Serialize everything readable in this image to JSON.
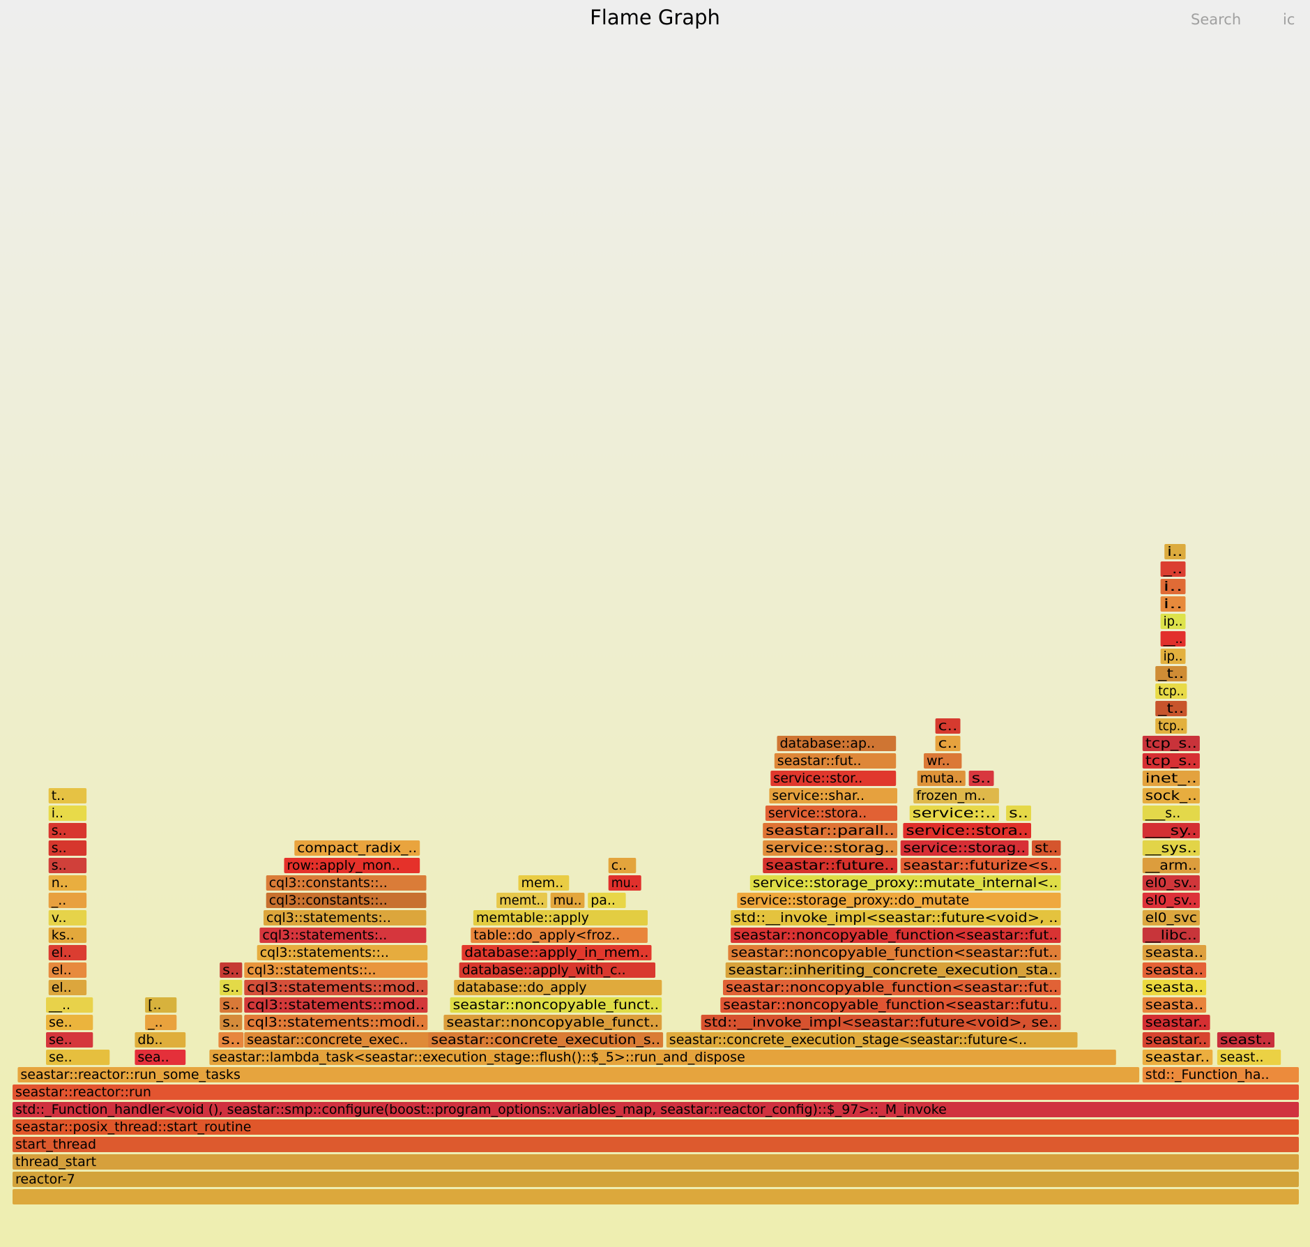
{
  "title": "Flame Graph",
  "controls": {
    "search_label": "Search",
    "ic_label": "ic"
  },
  "colors": {
    "background_top": "#eeeeee",
    "background_bottom": "#eeeeb0",
    "palette": "hot (red-orange-yellow)"
  },
  "chart_data": {
    "type": "flamegraph",
    "title": "Flame Graph",
    "xlabel": "",
    "ylabel": "",
    "frames": [
      {
        "label": "",
        "depth": 0,
        "start": 0.0,
        "width": 1.0,
        "color": "#dca83c"
      },
      {
        "label": "reactor-7",
        "depth": 1,
        "start": 0.0,
        "width": 1.0,
        "color": "#d3a33a"
      },
      {
        "label": "thread_start",
        "depth": 2,
        "start": 0.0,
        "width": 1.0,
        "color": "#d6a03c"
      },
      {
        "label": "start_thread",
        "depth": 3,
        "start": 0.0,
        "width": 1.0,
        "color": "#dd5a2e"
      },
      {
        "label": "seastar::posix_thread::start_routine",
        "depth": 4,
        "start": 0.0,
        "width": 1.0,
        "color": "#e0572a"
      },
      {
        "label": "std::_Function_handler<void (), seastar::smp::configure(boost::program_options::variables_map, seastar::reactor_config)::$_97>::_M_invoke",
        "depth": 5,
        "start": 0.0,
        "width": 1.0,
        "color": "#d0323f"
      },
      {
        "label": "seastar::reactor::run",
        "depth": 6,
        "start": 0.0,
        "width": 1.0,
        "color": "#e35530"
      },
      {
        "label": "seastar::reactor::run_some_tasks",
        "depth": 7,
        "start": 0.004,
        "width": 0.872,
        "color": "#e6a43e"
      },
      {
        "label": "std::_Function_ha..",
        "depth": 7,
        "start": 0.878,
        "width": 0.122,
        "color": "#ec8b3c"
      },
      {
        "label": "se..",
        "depth": 8,
        "start": 0.026,
        "width": 0.05,
        "color": "#e6bf3e"
      },
      {
        "label": "sea..",
        "depth": 8,
        "start": 0.095,
        "width": 0.04,
        "color": "#e4303a"
      },
      {
        "label": "seastar::lambda_task<seastar::execution_stage::flush()::$_5>::run_and_dispose",
        "depth": 8,
        "start": 0.153,
        "width": 0.705,
        "color": "#e5a33c"
      },
      {
        "label": "seastar..",
        "depth": 8,
        "start": 0.878,
        "width": 0.055,
        "color": "#ecae3f"
      },
      {
        "label": "seast..",
        "depth": 8,
        "start": 0.936,
        "width": 0.05,
        "color": "#ebd144"
      },
      {
        "label": "se..",
        "depth": 9,
        "start": 0.026,
        "width": 0.037,
        "color": "#d5373c"
      },
      {
        "label": "db..",
        "depth": 9,
        "start": 0.095,
        "width": 0.04,
        "color": "#dfae3b"
      },
      {
        "label": "s..",
        "depth": 9,
        "start": 0.16,
        "width": 0.02,
        "color": "#e7873e"
      },
      {
        "label": "seastar::concrete_exec..",
        "depth": 9,
        "start": 0.18,
        "width": 0.152,
        "color": "#df8b38"
      },
      {
        "label": "seastar::concrete_execution_s..",
        "depth": 9,
        "start": 0.323,
        "width": 0.183,
        "color": "#da7c35"
      },
      {
        "label": "seastar::concrete_execution_stage<seastar::future<..",
        "depth": 9,
        "start": 0.508,
        "width": 0.32,
        "color": "#dfaa3c"
      },
      {
        "label": "seastar..",
        "depth": 9,
        "start": 0.878,
        "width": 0.053,
        "color": "#d74530"
      },
      {
        "label": "seast..",
        "depth": 9,
        "start": 0.936,
        "width": 0.045,
        "color": "#c9303c"
      },
      {
        "label": "se..",
        "depth": 10,
        "start": 0.026,
        "width": 0.037,
        "color": "#ebb43d"
      },
      {
        "label": "_..",
        "depth": 10,
        "start": 0.103,
        "width": 0.025,
        "color": "#e9a23d"
      },
      {
        "label": "s..",
        "depth": 10,
        "start": 0.161,
        "width": 0.018,
        "color": "#d58b3a"
      },
      {
        "label": "cql3::statements::modi..",
        "depth": 10,
        "start": 0.18,
        "width": 0.143,
        "color": "#e27b38"
      },
      {
        "label": "seastar::noncopyable_funct..",
        "depth": 10,
        "start": 0.335,
        "width": 0.17,
        "color": "#dc9e3c"
      },
      {
        "label": "std::__invoke_impl<seastar::future<void>, se..",
        "depth": 10,
        "start": 0.535,
        "width": 0.28,
        "color": "#d7522f"
      },
      {
        "label": "seastar..",
        "depth": 10,
        "start": 0.878,
        "width": 0.053,
        "color": "#d42f32"
      },
      {
        "label": "__..",
        "depth": 11,
        "start": 0.026,
        "width": 0.037,
        "color": "#e8d24a"
      },
      {
        "label": "[..",
        "depth": 11,
        "start": 0.103,
        "width": 0.025,
        "color": "#d7b23d"
      },
      {
        "label": "s..",
        "depth": 11,
        "start": 0.161,
        "width": 0.018,
        "color": "#d97938"
      },
      {
        "label": "cql3::statements::mod..",
        "depth": 11,
        "start": 0.18,
        "width": 0.143,
        "color": "#d3393a"
      },
      {
        "label": "seastar::noncopyable_funct..",
        "depth": 11,
        "start": 0.34,
        "width": 0.165,
        "color": "#dfdd46"
      },
      {
        "label": "seastar::noncopyable_function<seastar::futu..",
        "depth": 11,
        "start": 0.55,
        "width": 0.265,
        "color": "#e05533"
      },
      {
        "label": "seasta..",
        "depth": 11,
        "start": 0.878,
        "width": 0.05,
        "color": "#e8843c"
      },
      {
        "label": "el..",
        "depth": 12,
        "start": 0.028,
        "width": 0.03,
        "color": "#dca63d"
      },
      {
        "label": "s..",
        "depth": 12,
        "start": 0.161,
        "width": 0.018,
        "color": "#e3da48"
      },
      {
        "label": "cql3::statements::mod..",
        "depth": 12,
        "start": 0.18,
        "width": 0.143,
        "color": "#d5503a"
      },
      {
        "label": "database::do_apply",
        "depth": 12,
        "start": 0.343,
        "width": 0.162,
        "color": "#e0aa3c"
      },
      {
        "label": "seastar::noncopyable_function<seastar::fut..",
        "depth": 12,
        "start": 0.552,
        "width": 0.263,
        "color": "#e16236"
      },
      {
        "label": "seasta..",
        "depth": 12,
        "start": 0.878,
        "width": 0.05,
        "color": "#ecd93e"
      },
      {
        "label": "el..",
        "depth": 13,
        "start": 0.028,
        "width": 0.03,
        "color": "#e78a3e"
      },
      {
        "label": "s..",
        "depth": 13,
        "start": 0.161,
        "width": 0.018,
        "color": "#c63a34"
      },
      {
        "label": "cql3::statements::..",
        "depth": 13,
        "start": 0.18,
        "width": 0.143,
        "color": "#e9953d"
      },
      {
        "label": "database::apply_with_c..",
        "depth": 13,
        "start": 0.347,
        "width": 0.153,
        "color": "#d9392e"
      },
      {
        "label": "seastar::inheriting_concrete_execution_sta..",
        "depth": 13,
        "start": 0.554,
        "width": 0.261,
        "color": "#d8a23b"
      },
      {
        "label": "seasta..",
        "depth": 13,
        "start": 0.878,
        "width": 0.05,
        "color": "#e46236"
      },
      {
        "label": "el..",
        "depth": 14,
        "start": 0.028,
        "width": 0.03,
        "color": "#db3d31"
      },
      {
        "label": "cql3::statements::..",
        "depth": 14,
        "start": 0.19,
        "width": 0.133,
        "color": "#e6ac3e"
      },
      {
        "label": "database::apply_in_mem..",
        "depth": 14,
        "start": 0.349,
        "width": 0.148,
        "color": "#e2392d"
      },
      {
        "label": "seastar::noncopyable_function<seastar::fut..",
        "depth": 14,
        "start": 0.556,
        "width": 0.259,
        "color": "#e07e37"
      },
      {
        "label": "seasta..",
        "depth": 14,
        "start": 0.878,
        "width": 0.05,
        "color": "#dea03e"
      },
      {
        "label": "ks..",
        "depth": 15,
        "start": 0.028,
        "width": 0.03,
        "color": "#e3a83c"
      },
      {
        "label": "cql3::statements:..",
        "depth": 15,
        "start": 0.192,
        "width": 0.13,
        "color": "#d6363d"
      },
      {
        "label": "table::do_apply<froz..",
        "depth": 15,
        "start": 0.356,
        "width": 0.138,
        "color": "#e9853b"
      },
      {
        "label": "seastar::noncopyable_function<seastar::fut..",
        "depth": 15,
        "start": 0.558,
        "width": 0.257,
        "color": "#d93333"
      },
      {
        "label": "__libc..",
        "depth": 15,
        "start": 0.878,
        "width": 0.045,
        "color": "#c8353a"
      },
      {
        "label": "v..",
        "depth": 16,
        "start": 0.028,
        "width": 0.03,
        "color": "#e6d34a"
      },
      {
        "label": "cql3::statements:..",
        "depth": 16,
        "start": 0.195,
        "width": 0.127,
        "color": "#dca63c"
      },
      {
        "label": "memtable::apply",
        "depth": 16,
        "start": 0.358,
        "width": 0.136,
        "color": "#e3cd42"
      },
      {
        "label": "std::__invoke_impl<seastar::future<void>, ..",
        "depth": 16,
        "start": 0.558,
        "width": 0.257,
        "color": "#e4c33e"
      },
      {
        "label": "el0_svc",
        "depth": 16,
        "start": 0.878,
        "width": 0.045,
        "color": "#dca73f"
      },
      {
        "label": "_..",
        "depth": 17,
        "start": 0.028,
        "width": 0.03,
        "color": "#e8a03f"
      },
      {
        "label": "cql3::constants::..",
        "depth": 17,
        "start": 0.197,
        "width": 0.125,
        "color": "#c8712f"
      },
      {
        "label": "memt..",
        "depth": 17,
        "start": 0.376,
        "width": 0.04,
        "color": "#e7c84c"
      },
      {
        "label": "mu..",
        "depth": 17,
        "start": 0.418,
        "width": 0.027,
        "color": "#e3a63c"
      },
      {
        "label": "pa..",
        "depth": 17,
        "start": 0.447,
        "width": 0.03,
        "color": "#e8d648"
      },
      {
        "label": "service::storage_proxy::do_mutate",
        "depth": 17,
        "start": 0.563,
        "width": 0.252,
        "color": "#efa83e"
      },
      {
        "label": "el0_sv..",
        "depth": 17,
        "start": 0.878,
        "width": 0.045,
        "color": "#dd3239"
      },
      {
        "label": "n..",
        "depth": 18,
        "start": 0.028,
        "width": 0.03,
        "color": "#e9ae3f"
      },
      {
        "label": "cql3::constants::..",
        "depth": 18,
        "start": 0.197,
        "width": 0.125,
        "color": "#da7c38"
      },
      {
        "label": "mem..",
        "depth": 18,
        "start": 0.393,
        "width": 0.04,
        "color": "#e9cc44"
      },
      {
        "label": "mu..",
        "depth": 18,
        "start": 0.463,
        "width": 0.026,
        "color": "#e0302c"
      },
      {
        "label": "service::storage_proxy::mutate_internal<..",
        "depth": 18,
        "start": 0.573,
        "width": 0.242,
        "color": "#dfdd47"
      },
      {
        "label": "el0_sv..",
        "depth": 18,
        "start": 0.878,
        "width": 0.045,
        "color": "#d0363a"
      },
      {
        "label": "s..",
        "depth": 19,
        "start": 0.028,
        "width": 0.03,
        "color": "#d0403a"
      },
      {
        "label": "row::apply_mon..",
        "depth": 19,
        "start": 0.211,
        "width": 0.106,
        "color": "#e5312a"
      },
      {
        "label": "c..",
        "depth": 19,
        "start": 0.463,
        "width": 0.022,
        "color": "#e3a43c"
      },
      {
        "label": "seastar::future..",
        "depth": 19,
        "start": 0.583,
        "width": 0.105,
        "color": "#d6322c"
      },
      {
        "label": "seastar::futurize<s..",
        "depth": 19,
        "start": 0.69,
        "width": 0.125,
        "color": "#e46035"
      },
      {
        "label": "__arm..",
        "depth": 19,
        "start": 0.878,
        "width": 0.045,
        "color": "#dc9d3d"
      },
      {
        "label": "s..",
        "depth": 20,
        "start": 0.028,
        "width": 0.03,
        "color": "#d6372d"
      },
      {
        "label": "compact_radix_..",
        "depth": 20,
        "start": 0.219,
        "width": 0.098,
        "color": "#e9a43e"
      },
      {
        "label": "service::storag..",
        "depth": 20,
        "start": 0.583,
        "width": 0.105,
        "color": "#e18d3a"
      },
      {
        "label": "service::storag..",
        "depth": 20,
        "start": 0.69,
        "width": 0.1,
        "color": "#d72f36"
      },
      {
        "label": "st..",
        "depth": 20,
        "start": 0.792,
        "width": 0.023,
        "color": "#d5552d"
      },
      {
        "label": "__sys..",
        "depth": 20,
        "start": 0.878,
        "width": 0.045,
        "color": "#e2d448"
      },
      {
        "label": "s..",
        "depth": 21,
        "start": 0.028,
        "width": 0.03,
        "color": "#d8372f"
      },
      {
        "label": "seastar::parall..",
        "depth": 21,
        "start": 0.583,
        "width": 0.105,
        "color": "#df7335"
      },
      {
        "label": "service::stora..",
        "depth": 21,
        "start": 0.692,
        "width": 0.1,
        "color": "#e0302b"
      },
      {
        "label": "___sy..",
        "depth": 21,
        "start": 0.878,
        "width": 0.045,
        "color": "#d42f34"
      },
      {
        "label": "i..",
        "depth": 22,
        "start": 0.028,
        "width": 0.03,
        "color": "#e8da49"
      },
      {
        "label": "service::stora..",
        "depth": 22,
        "start": 0.585,
        "width": 0.103,
        "color": "#e16134"
      },
      {
        "label": "service::..",
        "depth": 22,
        "start": 0.697,
        "width": 0.07,
        "color": "#e7d849"
      },
      {
        "label": "s..",
        "depth": 22,
        "start": 0.772,
        "width": 0.02,
        "color": "#e5d848"
      },
      {
        "label": "___s..",
        "depth": 22,
        "start": 0.878,
        "width": 0.045,
        "color": "#e3d84a"
      },
      {
        "label": "t..",
        "depth": 23,
        "start": 0.028,
        "width": 0.03,
        "color": "#e6c244"
      },
      {
        "label": "service::shar..",
        "depth": 23,
        "start": 0.588,
        "width": 0.1,
        "color": "#e6a13e"
      },
      {
        "label": "frozen_m..",
        "depth": 23,
        "start": 0.7,
        "width": 0.067,
        "color": "#dfb84a"
      },
      {
        "label": "sock_..",
        "depth": 23,
        "start": 0.878,
        "width": 0.045,
        "color": "#e7ad3f"
      },
      {
        "label": "service::stor..",
        "depth": 24,
        "start": 0.589,
        "width": 0.098,
        "color": "#e0382d"
      },
      {
        "label": "muta..",
        "depth": 24,
        "start": 0.703,
        "width": 0.038,
        "color": "#de933a"
      },
      {
        "label": "s..",
        "depth": 24,
        "start": 0.743,
        "width": 0.02,
        "color": "#d8373e"
      },
      {
        "label": "inet_..",
        "depth": 24,
        "start": 0.878,
        "width": 0.045,
        "color": "#e3a23e"
      },
      {
        "label": "seastar::fut..",
        "depth": 25,
        "start": 0.592,
        "width": 0.095,
        "color": "#de8738"
      },
      {
        "label": "wr..",
        "depth": 25,
        "start": 0.708,
        "width": 0.03,
        "color": "#db7837"
      },
      {
        "label": "tcp_s..",
        "depth": 25,
        "start": 0.878,
        "width": 0.045,
        "color": "#d73033"
      },
      {
        "label": "database::ap..",
        "depth": 26,
        "start": 0.594,
        "width": 0.093,
        "color": "#cf7533"
      },
      {
        "label": "c..",
        "depth": 26,
        "start": 0.717,
        "width": 0.02,
        "color": "#e6a23e"
      },
      {
        "label": "tcp_s..",
        "depth": 26,
        "start": 0.878,
        "width": 0.045,
        "color": "#c9333a"
      },
      {
        "label": "c..",
        "depth": 27,
        "start": 0.717,
        "width": 0.02,
        "color": "#d63a2f"
      },
      {
        "label": "tcp..",
        "depth": 27,
        "start": 0.888,
        "width": 0.025,
        "color": "#e2b03e"
      },
      {
        "label": "_t..",
        "depth": 28,
        "start": 0.888,
        "width": 0.025,
        "color": "#c8552c"
      },
      {
        "label": "tcp..",
        "depth": 29,
        "start": 0.888,
        "width": 0.025,
        "color": "#e8da48"
      },
      {
        "label": "_t..",
        "depth": 30,
        "start": 0.888,
        "width": 0.025,
        "color": "#cf8c35"
      },
      {
        "label": "ip..",
        "depth": 31,
        "start": 0.892,
        "width": 0.02,
        "color": "#e3b03e"
      },
      {
        "label": "__..",
        "depth": 32,
        "start": 0.892,
        "width": 0.02,
        "color": "#e2302c"
      },
      {
        "label": "ip..",
        "depth": 33,
        "start": 0.892,
        "width": 0.02,
        "color": "#dde24b"
      },
      {
        "label": "i..",
        "depth": 34,
        "start": 0.892,
        "width": 0.02,
        "color": "#e78a3c"
      },
      {
        "label": "i..",
        "depth": 35,
        "start": 0.892,
        "width": 0.02,
        "color": "#e06b36"
      },
      {
        "label": "_..",
        "depth": 36,
        "start": 0.892,
        "width": 0.02,
        "color": "#db3f31"
      },
      {
        "label": "i..",
        "depth": 37,
        "start": 0.895,
        "width": 0.017,
        "color": "#dcab3e"
      }
    ]
  }
}
